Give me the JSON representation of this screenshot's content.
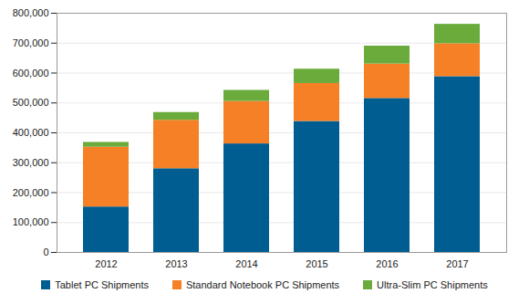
{
  "chart_data": {
    "type": "bar",
    "stacked": true,
    "grid": true,
    "legend": "bottom",
    "categories": [
      "2012",
      "2013",
      "2014",
      "2015",
      "2016",
      "2017"
    ],
    "series": [
      {
        "name": "Tablet PC Shipments",
        "color": "#005d92",
        "values": [
          152000,
          280000,
          363000,
          438000,
          515000,
          588000
        ]
      },
      {
        "name": "Standard Notebook PC Shipments",
        "color": "#f58025",
        "values": [
          200000,
          162000,
          142000,
          127000,
          115000,
          110000
        ]
      },
      {
        "name": "Ultra-Slim PC Shipments",
        "color": "#6aab3c",
        "values": [
          16000,
          26000,
          37000,
          48000,
          60000,
          65000
        ]
      }
    ],
    "ylim": [
      0,
      800000
    ],
    "yticks": [
      0,
      {
        "value": 100000,
        "label": "100,000"
      },
      {
        "value": 200000,
        "label": "200,000"
      },
      {
        "value": 300000,
        "label": "300,000"
      },
      {
        "value": 400000,
        "label": "400,000"
      },
      {
        "value": 500000,
        "label": "500,000"
      },
      {
        "value": 600000,
        "label": "600,000"
      },
      {
        "value": 700000,
        "label": "700,000"
      },
      {
        "value": 800000,
        "label": "800,000"
      }
    ]
  }
}
